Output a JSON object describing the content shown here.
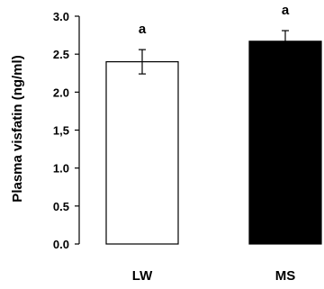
{
  "chart_data": {
    "type": "bar",
    "categories": [
      "LW",
      "MS"
    ],
    "values": [
      2.4,
      2.67
    ],
    "errors": [
      0.16,
      0.14
    ],
    "significance": [
      "a",
      "a"
    ],
    "ylabel": "Plasma visfatin (ng/ml)",
    "ylim": [
      0,
      3.0
    ],
    "yticks": [
      0.0,
      0.5,
      1.0,
      1.5,
      2.0,
      2.5,
      3.0
    ],
    "ytick_labels": [
      "0.0",
      "0.5",
      "1.0",
      "1,5",
      "2.0",
      "2.5",
      "3.0"
    ],
    "grid": false,
    "bar_fills": [
      "#ffffff",
      "#000000"
    ],
    "bar_stroke": "#000000"
  }
}
